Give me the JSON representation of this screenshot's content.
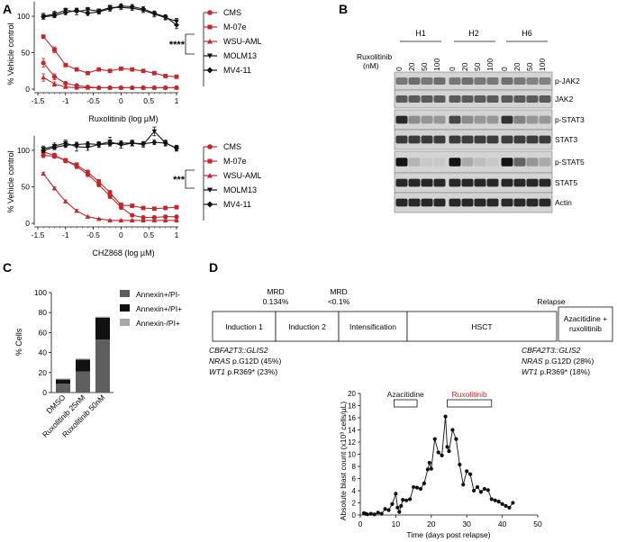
{
  "panels": {
    "A": "A",
    "B": "B",
    "C": "C",
    "D": "D"
  },
  "colors": {
    "red": "#c0282d",
    "black": "#111111",
    "dark_gray": "#5f5f5f",
    "light_gray": "#a8a8a8"
  },
  "panel_a_legend": {
    "items": [
      "CMS",
      "M-07e",
      "WSU-AML",
      "MOLM13",
      "MV4-11"
    ],
    "sig_top": "****",
    "sig_bottom": "***"
  },
  "chart_data": [
    {
      "id": "a_top",
      "type": "line",
      "title": "",
      "xlabel": "Ruxolitinib (log µM)",
      "ylabel": "% Vehicle control",
      "xlim": [
        -1.5,
        1
      ],
      "ylim": [
        0,
        100
      ],
      "xticks": [
        "-1.5",
        "-1",
        "-0.5",
        "0",
        "0.5",
        "1"
      ],
      "yticks": [
        "0",
        "50",
        "100"
      ],
      "x": [
        -1.4,
        -1.2,
        -1.0,
        -0.8,
        -0.6,
        -0.4,
        -0.2,
        0.0,
        0.2,
        0.4,
        0.6,
        0.8,
        1.0
      ],
      "series": [
        {
          "name": "CMS",
          "color": "red",
          "marker": "circle",
          "values": [
            36,
            17,
            8,
            5,
            3,
            2,
            2,
            2,
            2,
            2,
            2,
            2,
            2
          ],
          "err": [
            6,
            4,
            2,
            1,
            1,
            1,
            1,
            1,
            1,
            1,
            1,
            1,
            1
          ]
        },
        {
          "name": "M-07e",
          "color": "red",
          "marker": "square",
          "values": [
            72,
            54,
            33,
            27,
            22,
            27,
            25,
            28,
            27,
            25,
            22,
            18,
            17
          ],
          "err": [
            2,
            4,
            2,
            2,
            2,
            2,
            2,
            2,
            2,
            2,
            2,
            2,
            2
          ]
        },
        {
          "name": "WSU-AML",
          "color": "red",
          "marker": "triangle",
          "values": [
            16,
            7,
            3,
            2,
            2,
            2,
            2,
            2,
            2,
            2,
            2,
            2,
            2
          ],
          "err": [
            5,
            3,
            1,
            1,
            1,
            1,
            1,
            1,
            1,
            1,
            1,
            1,
            1
          ]
        },
        {
          "name": "MOLM13",
          "color": "black",
          "marker": "triangle-down",
          "values": [
            100,
            103,
            108,
            106,
            109,
            107,
            112,
            112,
            111,
            108,
            103,
            98,
            93
          ],
          "err": [
            4,
            4,
            3,
            4,
            3,
            3,
            3,
            3,
            3,
            3,
            4,
            3,
            4
          ]
        },
        {
          "name": "MV4-11",
          "color": "black",
          "marker": "diamond",
          "values": [
            99,
            101,
            105,
            108,
            104,
            106,
            110,
            114,
            113,
            110,
            104,
            99,
            88
          ],
          "err": [
            3,
            3,
            3,
            3,
            3,
            3,
            3,
            3,
            3,
            3,
            3,
            3,
            5
          ]
        }
      ]
    },
    {
      "id": "a_bottom",
      "type": "line",
      "title": "",
      "xlabel": "CHZ868 (log µM)",
      "ylabel": "% Vehicle control",
      "xlim": [
        -1.5,
        1
      ],
      "ylim": [
        0,
        100
      ],
      "xticks": [
        "-1.5",
        "-1",
        "-0.5",
        "0",
        "0.5",
        "1"
      ],
      "yticks": [
        "0",
        "50",
        "100"
      ],
      "x": [
        -1.4,
        -1.2,
        -1.0,
        -0.8,
        -0.6,
        -0.4,
        -0.2,
        0.0,
        0.2,
        0.4,
        0.6,
        0.8,
        1.0
      ],
      "series": [
        {
          "name": "CMS",
          "color": "red",
          "marker": "circle",
          "values": [
            93,
            92,
            86,
            78,
            67,
            53,
            37,
            22,
            11,
            8,
            8,
            9,
            9
          ],
          "err": [
            3,
            3,
            3,
            3,
            3,
            3,
            3,
            3,
            2,
            2,
            2,
            2,
            2
          ]
        },
        {
          "name": "M-07e",
          "color": "red",
          "marker": "square",
          "values": [
            98,
            93,
            86,
            80,
            70,
            57,
            42,
            25,
            24,
            21,
            20,
            21,
            22
          ],
          "err": [
            3,
            3,
            3,
            3,
            3,
            3,
            3,
            3,
            2,
            2,
            2,
            2,
            2
          ]
        },
        {
          "name": "WSU-AML",
          "color": "red",
          "marker": "triangle",
          "values": [
            68,
            48,
            30,
            17,
            9,
            6,
            4,
            4,
            4,
            4,
            4,
            4,
            4
          ],
          "err": [
            2,
            2,
            2,
            2,
            1,
            1,
            1,
            1,
            1,
            1,
            1,
            1,
            1
          ]
        },
        {
          "name": "MOLM13",
          "color": "black",
          "marker": "triangle-down",
          "values": [
            102,
            106,
            110,
            105,
            104,
            108,
            112,
            107,
            110,
            108,
            126,
            110,
            103
          ],
          "err": [
            4,
            4,
            4,
            6,
            4,
            4,
            6,
            4,
            4,
            4,
            6,
            4,
            4
          ]
        },
        {
          "name": "MV4-11",
          "color": "black",
          "marker": "diamond",
          "values": [
            100,
            104,
            107,
            108,
            109,
            108,
            109,
            110,
            110,
            109,
            111,
            110,
            103
          ],
          "err": [
            3,
            3,
            3,
            3,
            3,
            3,
            3,
            3,
            3,
            3,
            3,
            3,
            3
          ]
        }
      ]
    },
    {
      "id": "c",
      "type": "bar",
      "stacked": true,
      "title": "",
      "xlabel": "",
      "ylabel": "% Cells",
      "ylim": [
        0,
        100
      ],
      "yticks": [
        "0",
        "20",
        "40",
        "60",
        "80",
        "100"
      ],
      "categories": [
        "DMSO",
        "Ruxolitinib 25nM",
        "Ruxolitinib 50nM"
      ],
      "series": [
        {
          "name": "Annexin+/PI-",
          "color": "dark_gray",
          "values": [
            9,
            21,
            53
          ]
        },
        {
          "name": "Annexin+/PI+",
          "color": "black",
          "values": [
            4,
            12,
            22
          ]
        },
        {
          "name": "Annexin-/PI+",
          "color": "light_gray",
          "values": [
            1,
            1,
            1
          ]
        }
      ]
    },
    {
      "id": "d",
      "type": "line",
      "title": "",
      "xlabel": "Time (days post relapse)",
      "ylabel": "Absolute blast count (x10³ cells/µL)",
      "xlim": [
        0,
        50
      ],
      "ylim": [
        0,
        20
      ],
      "xticks": [
        "0",
        "10",
        "20",
        "30",
        "40",
        "50"
      ],
      "yticks": [
        "0",
        "2",
        "4",
        "6",
        "8",
        "10",
        "12",
        "14",
        "16",
        "18",
        "20"
      ],
      "annotations": [
        {
          "label": "Azacitidine",
          "start": 9.5,
          "end": 16,
          "color": "black"
        },
        {
          "label": "Ruxolitinib",
          "start": 24.5,
          "end": 37,
          "color": "red"
        }
      ],
      "x": [
        1,
        1.5,
        2,
        3,
        4,
        5,
        6,
        7,
        8,
        9,
        10,
        10.5,
        11,
        11.5,
        12,
        13,
        14,
        15,
        16,
        17,
        18,
        19,
        19.5,
        20,
        21,
        22,
        23,
        24,
        24.5,
        25,
        26,
        27,
        28,
        29,
        30,
        31,
        32,
        33,
        34,
        35,
        36,
        37,
        38,
        39,
        40,
        41,
        42,
        43
      ],
      "values": [
        0.3,
        0.2,
        0.1,
        0.2,
        0.1,
        0.4,
        0.2,
        1.0,
        0.8,
        1.8,
        3.5,
        1.2,
        0.5,
        1.5,
        2.5,
        2.4,
        2.6,
        4.6,
        4.5,
        4.3,
        5.2,
        7.5,
        8.6,
        7.6,
        12.5,
        10.3,
        9.8,
        16.2,
        11.2,
        10.5,
        14.0,
        12.5,
        8.3,
        5.0,
        7.2,
        6.7,
        4.0,
        4.6,
        3.8,
        4.3,
        4.1,
        2.6,
        2.4,
        2.2,
        1.8,
        1.5,
        1.2,
        2.0
      ]
    }
  ],
  "panel_b": {
    "groups": [
      "H1",
      "H2",
      "H6"
    ],
    "doses": [
      "0",
      "20",
      "50",
      "100"
    ],
    "dose_label_line1": "Ruxolitinib",
    "dose_label_line2": "(nM)",
    "blots": [
      "p-JAK2",
      "JAK2",
      "p-STAT3",
      "STAT3",
      "p-STAT5",
      "STAT5",
      "Actin"
    ]
  },
  "panel_d": {
    "stages": [
      "Induction 1",
      "Induction 2",
      "Intensification",
      "HSCT"
    ],
    "last_stage_line1": "Azacitidine +",
    "last_stage_line2": "ruxolitinib",
    "mrd1_line1": "MRD",
    "mrd1_line2": "0.134%",
    "mrd2_line1": "MRD",
    "mrd2_line2": "<0.1%",
    "relapse": "Relapse",
    "left_mut_1": "CBFA2T3::GLIS2",
    "left_mut_2_gene": "NRAS",
    "left_mut_2_rest": " p.G12D (45%)",
    "left_mut_3_gene": "WT1",
    "left_mut_3_rest": " p.R369* (23%)",
    "right_mut_1": "CBFA2T3::GLIS2",
    "right_mut_2_gene": "NRAS",
    "right_mut_2_rest": " p.G12D (28%)",
    "right_mut_3_gene": "WT1",
    "right_mut_3_rest": " p.R369* (18%)"
  }
}
